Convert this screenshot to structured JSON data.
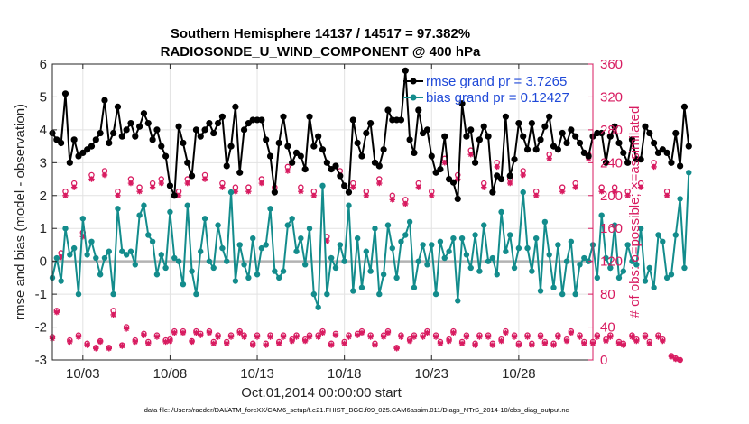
{
  "chart_data": {
    "type": "line",
    "title_line1": "Southern Hemisphere 14137 / 14517 = 97.382%",
    "title_line2": "RADIOSONDE_U_WIND_COMPONENT @ 400 hPa",
    "xlabel": "Oct.01,2014 00:00:00 start",
    "ylabel_left": "rmse and bias (model - observation)",
    "ylabel_right": "# of obs: o=possible; ×=assimilated",
    "footnote": "data file: /Users/raeder/DAI/ATM_forcXX/CAM6_setup/f.e21.FHIST_BGC.f09_025.CAM6assim.011/Diags_NTrS_2014-10/obs_diag_output.nc",
    "x_ticks": [
      {
        "value": 3,
        "label": "10/03"
      },
      {
        "value": 8,
        "label": "10/08"
      },
      {
        "value": 13,
        "label": "10/13"
      },
      {
        "value": 18,
        "label": "10/18"
      },
      {
        "value": 23,
        "label": "10/23"
      },
      {
        "value": 28,
        "label": "10/28"
      }
    ],
    "y_left_ticks": [
      {
        "value": -3,
        "label": "-3"
      },
      {
        "value": -2,
        "label": "-2"
      },
      {
        "value": -1,
        "label": "-1"
      },
      {
        "value": 0,
        "label": "0"
      },
      {
        "value": 1,
        "label": "1"
      },
      {
        "value": 2,
        "label": "2"
      },
      {
        "value": 3,
        "label": "3"
      },
      {
        "value": 4,
        "label": "4"
      },
      {
        "value": 5,
        "label": "5"
      },
      {
        "value": 6,
        "label": "6"
      }
    ],
    "y_right_ticks": [
      {
        "value": 0,
        "label": "0"
      },
      {
        "value": 40,
        "label": "40"
      },
      {
        "value": 80,
        "label": "80"
      },
      {
        "value": 120,
        "label": "120"
      },
      {
        "value": 160,
        "label": "160"
      },
      {
        "value": 200,
        "label": "200"
      },
      {
        "value": 240,
        "label": "240"
      },
      {
        "value": 280,
        "label": "280"
      },
      {
        "value": 320,
        "label": "320"
      },
      {
        "value": 360,
        "label": "360"
      }
    ],
    "xlim": [
      1.25,
      32.25
    ],
    "ylim_left": [
      -3,
      6
    ],
    "ylim_right": [
      0,
      360
    ],
    "x_start": 1.25,
    "x_step": 0.25,
    "legend": [
      {
        "label": "rmse grand pr = 3.7265",
        "color": "#000000"
      },
      {
        "label": "bias grand pr = 0.12427",
        "color": "#138c8c"
      }
    ],
    "series": [
      {
        "name": "rmse",
        "color": "#000000",
        "values": [
          3.9,
          3.7,
          3.6,
          5.1,
          3.0,
          3.7,
          3.2,
          3.3,
          3.4,
          3.5,
          3.7,
          3.9,
          4.9,
          3.6,
          3.9,
          4.7,
          3.8,
          4.0,
          4.2,
          3.8,
          4.1,
          4.5,
          4.2,
          3.7,
          4.0,
          3.5,
          3.2,
          2.3,
          2.0,
          4.1,
          3.6,
          3.0,
          2.6,
          4.0,
          3.8,
          4.0,
          4.2,
          3.9,
          4.2,
          4.4,
          2.9,
          3.5,
          4.7,
          2.7,
          4.0,
          4.2,
          4.3,
          4.3,
          4.3,
          3.7,
          3.2,
          2.1,
          3.6,
          4.4,
          3.5,
          3.0,
          3.3,
          3.2,
          2.8,
          4.4,
          3.5,
          3.8,
          3.4,
          3.0,
          2.8,
          2.9,
          2.6,
          2.3,
          2.1,
          4.3,
          3.6,
          3.2,
          3.9,
          4.2,
          3.0,
          2.9,
          3.4,
          4.6,
          4.3,
          4.3,
          4.3,
          5.8,
          3.7,
          3.3,
          4.6,
          3.9,
          4.0,
          3.2,
          2.7,
          2.8,
          3.8,
          2.5,
          2.4,
          1.9,
          4.8,
          3.8,
          4.0,
          3.0,
          3.7,
          4.1,
          3.8,
          2.1,
          2.6,
          2.5,
          4.4,
          2.6,
          3.1,
          4.2,
          3.8,
          3.4,
          4.2,
          3.4,
          3.7,
          4.1,
          4.4,
          3.5,
          3.4,
          3.9,
          3.6,
          4.0,
          3.8,
          3.6,
          3.3,
          3.2,
          3.8,
          3.9,
          3.9,
          3.0,
          3.8,
          4.1,
          3.6,
          3.3,
          3.0,
          3.7,
          3.1,
          3.1,
          4.1,
          3.9,
          3.6,
          3.3,
          3.4,
          3.3,
          3.0,
          3.9,
          2.9,
          4.7,
          3.5
        ]
      },
      {
        "name": "bias",
        "color": "#138c8c",
        "values": [
          -0.5,
          0.1,
          -0.6,
          1.0,
          0.2,
          0.4,
          -1.0,
          1.3,
          0.2,
          0.6,
          0.1,
          -0.4,
          0.1,
          0.3,
          -1.0,
          1.6,
          0.3,
          0.2,
          0.3,
          -0.1,
          1.4,
          1.7,
          0.8,
          0.6,
          -0.4,
          0.2,
          -0.2,
          1.5,
          0.1,
          0.0,
          -0.7,
          1.7,
          -0.3,
          -1.0,
          0.3,
          1.3,
          0.0,
          -0.2,
          1.1,
          0.4,
          0.0,
          2.1,
          -0.6,
          0.5,
          -0.1,
          -0.5,
          0.7,
          -0.4,
          0.4,
          0.5,
          1.6,
          -0.3,
          -0.5,
          -0.3,
          1.1,
          1.3,
          0.3,
          0.7,
          -0.1,
          1.0,
          -1.0,
          -1.4,
          2.3,
          -1.0,
          0.1,
          -0.2,
          0.5,
          0.0,
          1.7,
          -0.9,
          0.7,
          -0.8,
          0.3,
          -0.3,
          1.0,
          -1.0,
          -0.4,
          1.1,
          0.4,
          -0.5,
          0.6,
          0.8,
          1.2,
          -0.8,
          0.0,
          0.5,
          -0.1,
          0.5,
          -1.0,
          0.6,
          0.1,
          0.3,
          0.7,
          -1.2,
          0.7,
          0.2,
          -0.2,
          0.8,
          -0.3,
          1.1,
          0.0,
          0.1,
          -0.4,
          1.5,
          0.3,
          0.8,
          -0.2,
          0.4,
          2.1,
          0.4,
          -0.3,
          0.7,
          -0.9,
          1.2,
          0.2,
          -0.8,
          0.5,
          -1.0,
          0.0,
          0.6,
          -1.0,
          -0.1,
          0.1,
          0.0,
          0.5,
          -0.5,
          1.4,
          0.1,
          -0.2,
          1.1,
          -0.5,
          -0.3,
          0.5,
          0.0,
          -0.1,
          1.0,
          -0.6,
          -0.2,
          -0.8,
          0.8,
          0.6,
          -0.5,
          -0.4,
          0.8,
          1.9,
          -0.2,
          2.7
        ]
      },
      {
        "name": "obs_possible",
        "color": "#d81b60",
        "marker": "circle",
        "values": [
          28,
          60,
          130,
          205,
          24,
          215,
          30,
          155,
          20,
          225,
          15,
          23,
          230,
          15,
          60,
          205,
          18,
          40,
          220,
          24,
          210,
          32,
          22,
          215,
          30,
          220,
          24,
          25,
          35,
          205,
          35,
          220,
          23,
          35,
          32,
          225,
          35,
          22,
          30,
          215,
          22,
          30,
          210,
          35,
          30,
          210,
          20,
          30,
          220,
          20,
          30,
          210,
          22,
          30,
          235,
          25,
          30,
          210,
          25,
          30,
          205,
          30,
          35,
          150,
          20,
          32,
          230,
          22,
          30,
          215,
          32,
          35,
          205,
          30,
          20,
          220,
          30,
          35,
          200,
          15,
          30,
          195,
          25,
          30,
          215,
          30,
          35,
          205,
          30,
          22,
          245,
          25,
          35,
          225,
          22,
          30,
          255,
          20,
          30,
          215,
          30,
          20,
          240,
          25,
          35,
          220,
          30,
          20,
          230,
          30,
          20,
          205,
          30,
          22,
          250,
          20,
          30,
          210,
          25,
          35,
          215,
          30,
          22,
          250,
          22,
          30,
          210,
          25,
          30,
          210,
          22,
          20,
          205,
          30,
          25,
          215,
          30,
          22,
          240,
          30,
          25,
          205,
          5,
          2,
          0
        ]
      },
      {
        "name": "obs_assimilated",
        "color": "#d81b60",
        "marker": "asterisk",
        "values": [
          26,
          58,
          125,
          200,
          22,
          210,
          28,
          150,
          18,
          220,
          14,
          22,
          225,
          14,
          55,
          200,
          17,
          38,
          215,
          22,
          205,
          30,
          20,
          210,
          28,
          215,
          22,
          23,
          33,
          200,
          33,
          215,
          22,
          33,
          30,
          220,
          33,
          20,
          28,
          210,
          20,
          28,
          205,
          33,
          28,
          205,
          18,
          28,
          215,
          18,
          28,
          205,
          20,
          28,
          230,
          23,
          28,
          205,
          23,
          28,
          200,
          28,
          33,
          145,
          18,
          30,
          225,
          20,
          28,
          210,
          30,
          33,
          200,
          28,
          18,
          215,
          28,
          33,
          195,
          14,
          28,
          190,
          23,
          28,
          210,
          28,
          33,
          200,
          28,
          20,
          240,
          23,
          33,
          220,
          20,
          28,
          250,
          18,
          28,
          210,
          28,
          18,
          235,
          23,
          33,
          215,
          28,
          18,
          225,
          28,
          18,
          200,
          28,
          20,
          245,
          18,
          28,
          205,
          23,
          33,
          210,
          28,
          20,
          245,
          20,
          28,
          205,
          23,
          28,
          205,
          20,
          18,
          200,
          28,
          23,
          210,
          28,
          20,
          235,
          28,
          23,
          200,
          4,
          1,
          0
        ]
      }
    ]
  }
}
